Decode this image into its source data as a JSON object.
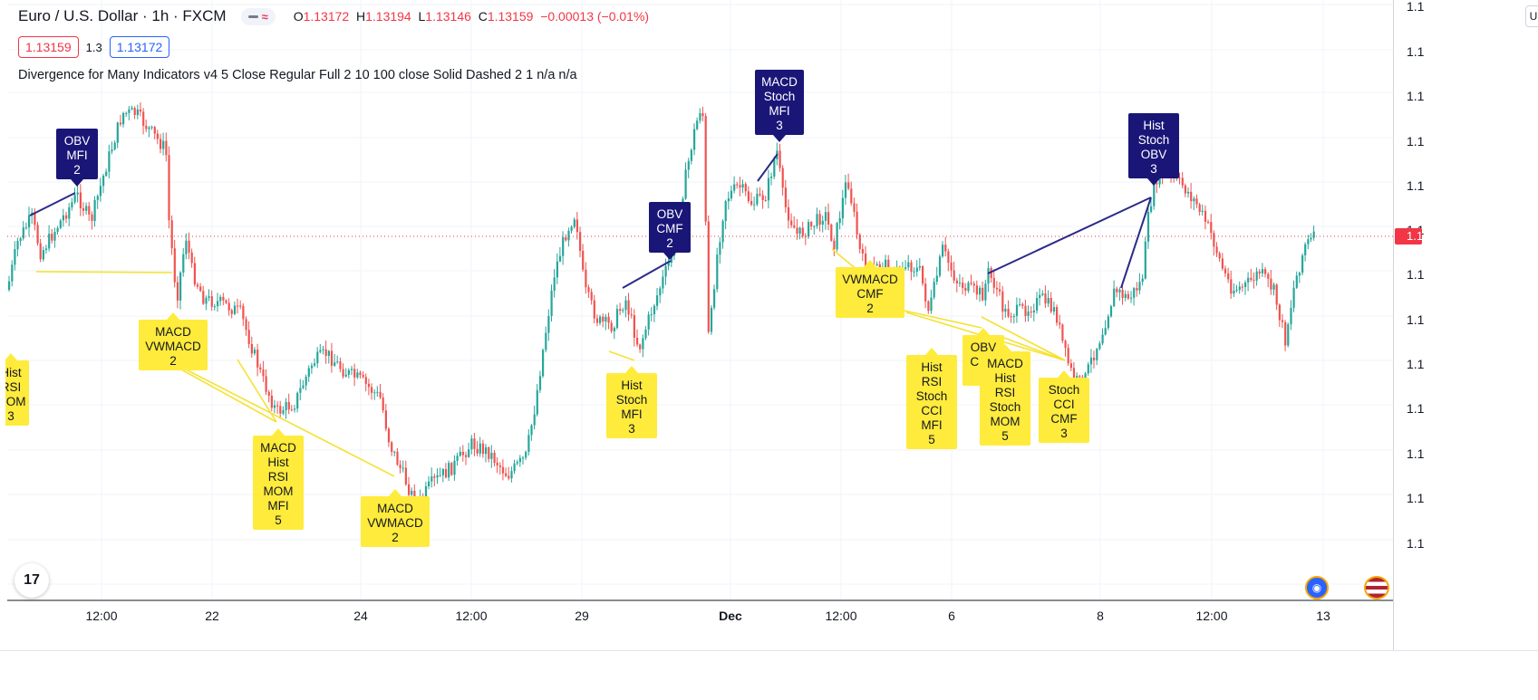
{
  "header": {
    "symbol": "Euro / U.S. Dollar · 1h · FXCM",
    "ohlc": {
      "o_label": "O",
      "o": "1.13172",
      "h_label": "H",
      "h": "1.13194",
      "l_label": "L",
      "l": "1.13146",
      "c_label": "C",
      "c": "1.13159",
      "change": "−0.00013 (−0.01%)"
    },
    "bid": "1.13159",
    "spread": "1.3",
    "ask": "1.13172",
    "indicator": "Divergence for Many Indicators v4 5 Close Regular Full 2 10 100 close Solid Dashed 2 1  n/a  n/a"
  },
  "colors": {
    "up": "#26a69a",
    "down": "#ef5350",
    "bearish_label": "#1a1678",
    "bullish_label": "#ffeb3b",
    "bearish_line": "#2a2a8a",
    "bullish_line": "#f5e232",
    "price_line": "#f23645",
    "grid": "#f0f3fa"
  },
  "right_axis": {
    "tick_prefix": "1.1",
    "last_price_tag": "1.1",
    "corner_tag": "U"
  },
  "chart_data": {
    "type": "candlestick",
    "x_tick_labels": [
      "12:00",
      "22",
      "24",
      "12:00",
      "29",
      "Dec",
      "12:00",
      "6",
      "8",
      "12:00",
      "13"
    ],
    "y_tick_labels": [
      "1.1",
      "1.1",
      "1.1",
      "1.1",
      "1.1",
      "1.1",
      "1.1",
      "1.1",
      "1.1",
      "1.1",
      "1.1",
      "1.1",
      "1.1"
    ],
    "last_close": 1.13159,
    "bearish_divergence_labels": [
      {
        "lines": [
          "OBV",
          "MFI",
          "2"
        ]
      },
      {
        "lines": [
          "OBV",
          "CMF",
          "2"
        ]
      },
      {
        "lines": [
          "MACD",
          "Stoch",
          "MFI",
          "3"
        ]
      },
      {
        "lines": [
          "Hist",
          "Stoch",
          "OBV",
          "3"
        ]
      }
    ],
    "bullish_divergence_labels": [
      {
        "lines": [
          "Hist",
          "RSI",
          "MOM",
          "3"
        ]
      },
      {
        "lines": [
          "MACD",
          "VWMACD",
          "2"
        ]
      },
      {
        "lines": [
          "MACD",
          "Hist",
          "RSI",
          "MOM",
          "MFI",
          "5"
        ]
      },
      {
        "lines": [
          "MACD",
          "VWMACD",
          "2"
        ]
      },
      {
        "lines": [
          "Hist",
          "Stoch",
          "MFI",
          "3"
        ]
      },
      {
        "lines": [
          "VWMACD",
          "CMF",
          "2"
        ]
      },
      {
        "lines": [
          "Hist",
          "RSI",
          "Stoch",
          "CCI",
          "MFI",
          "5"
        ]
      },
      {
        "lines": [
          "OBV",
          "CMF",
          "2"
        ]
      },
      {
        "lines": [
          "MACD",
          "Hist",
          "RSI",
          "Stoch",
          "MOM",
          "5"
        ]
      },
      {
        "lines": [
          "Stoch",
          "CCI",
          "CMF",
          "3"
        ]
      }
    ]
  },
  "icons": {
    "logo": "tradingview-logo-icon",
    "globe": "globe-icon",
    "flag": "us-flag-icon"
  },
  "logo_text": "17"
}
